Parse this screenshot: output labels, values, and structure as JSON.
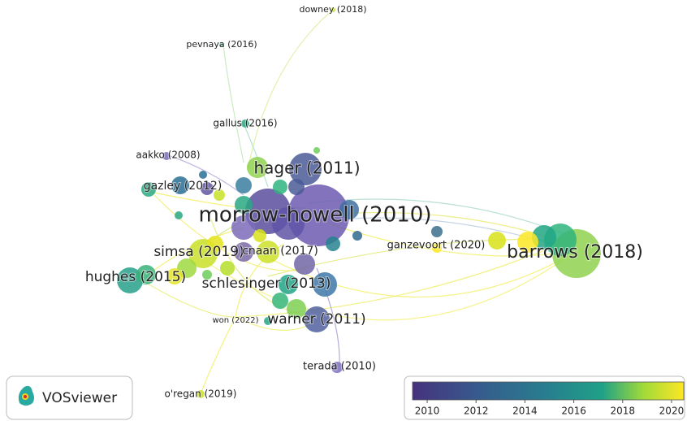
{
  "nodes": [
    {
      "label": "downey (2018)"
    },
    {
      "label": "pevnaya (2016)"
    },
    {
      "label": "gallus (2016)"
    },
    {
      "label": "aakko (2008)"
    },
    {
      "label": "hager (2011)"
    },
    {
      "label": "gazley (2012)"
    },
    {
      "label": "morrow-howell (2010)"
    },
    {
      "label": "ganzevoort (2020)"
    },
    {
      "label": "barrows (2018)"
    },
    {
      "label": "simsa (2019)"
    },
    {
      "label": "cnaan (2017)"
    },
    {
      "label": "hughes (2015)"
    },
    {
      "label": "schlesinger (2013)"
    },
    {
      "label": "won (2022)"
    },
    {
      "label": "warner (2011)"
    },
    {
      "label": "terada (2010)"
    },
    {
      "label": "o'regan (2019)"
    }
  ],
  "logo": {
    "text": "VOSviewer"
  },
  "colorbar": {
    "range": [
      2009.4,
      2020.5
    ],
    "ticks": [
      2010,
      2012,
      2014,
      2016,
      2018,
      2020
    ]
  }
}
